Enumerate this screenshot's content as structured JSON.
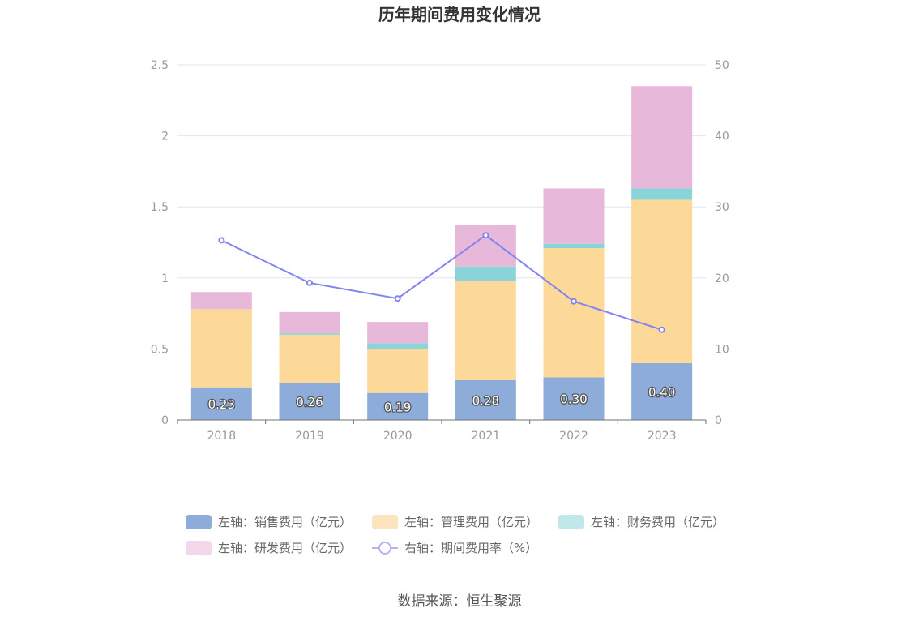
{
  "chart_data": {
    "type": "bar",
    "title": "历年期间费用变化情况",
    "categories": [
      "2018",
      "2019",
      "2020",
      "2021",
      "2022",
      "2023"
    ],
    "left_axis": {
      "min": 0,
      "max": 2.5,
      "ticks": [
        "0",
        "0.5",
        "1",
        "1.5",
        "2",
        "2.5"
      ]
    },
    "right_axis": {
      "min": 0,
      "max": 50,
      "ticks": [
        "0",
        "10",
        "20",
        "30",
        "40",
        "50"
      ]
    },
    "grid": true,
    "legend_position": "bottom",
    "stacked_series": [
      {
        "name": "左轴：销售费用（亿元）",
        "color": "#8eacd9",
        "values": [
          0.23,
          0.26,
          0.19,
          0.28,
          0.3,
          0.4
        ],
        "labels": [
          "0.23",
          "0.26",
          "0.19",
          "0.28",
          "0.30",
          "0.40"
        ]
      },
      {
        "name": "左轴：管理费用（亿元）",
        "color": "#fdd999",
        "values": [
          0.55,
          0.34,
          0.31,
          0.7,
          0.91,
          1.15
        ]
      },
      {
        "name": "左轴：财务费用（亿元）",
        "color": "#88d4d8",
        "values": [
          0.0,
          0.01,
          0.04,
          0.1,
          0.03,
          0.08
        ]
      },
      {
        "name": "左轴：研发费用（亿元）",
        "color": "#e7b8da",
        "values": [
          0.12,
          0.15,
          0.15,
          0.29,
          0.39,
          0.72
        ]
      }
    ],
    "line_series": {
      "name": "右轴：期间费用率（%）",
      "color": "#8383f0",
      "values": [
        25.3,
        19.3,
        17.1,
        26.0,
        16.7,
        12.7
      ]
    },
    "legend_colors": [
      "#8eacd9",
      "#fde4bf",
      "#c0e8ea",
      "#f2d8ea"
    ]
  },
  "source": "数据来源：恒生聚源"
}
